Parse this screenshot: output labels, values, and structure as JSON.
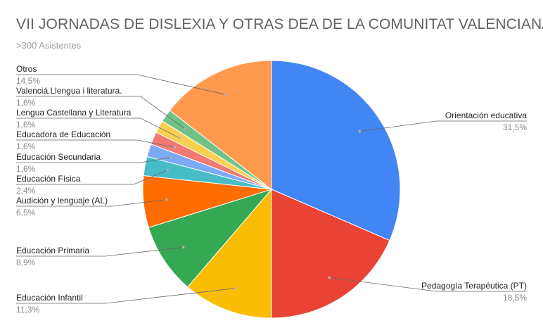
{
  "chart_data": {
    "type": "pie",
    "title": "VII JORNADAS DE DISLEXIA Y OTRAS DEA DE LA COMUNITAT VALENCIANA",
    "subtitle": ">300 Asistentes",
    "slices": [
      {
        "name": "Orientación educativa",
        "value": 31.5,
        "label": "31,5%",
        "color": "#4285f4"
      },
      {
        "name": "Pedagogía Terapéutica (PT)",
        "value": 18.5,
        "label": "18,5%",
        "color": "#ea4335"
      },
      {
        "name": "Educación Infantil",
        "value": 11.3,
        "label": "11,3%",
        "color": "#fbbc04"
      },
      {
        "name": "Educación Primaria",
        "value": 8.9,
        "label": "8,9%",
        "color": "#34a853"
      },
      {
        "name": "Audición y lenguaje (AL)",
        "value": 6.5,
        "label": "6,5%",
        "color": "#ff6d01"
      },
      {
        "name": "Educación Física",
        "value": 2.4,
        "label": "2,4%",
        "color": "#46bdc6"
      },
      {
        "name": "Educación Secundaria",
        "value": 1.6,
        "label": "1,6%",
        "color": "#7baaf7"
      },
      {
        "name": "Educadora de Educación",
        "value": 1.6,
        "label": "1,6%",
        "color": "#f07b72"
      },
      {
        "name": "Lengua Castellana y Literatura",
        "value": 1.6,
        "label": "1,6%",
        "color": "#fcd04f"
      },
      {
        "name": "Valenciá.Llengua i literatura.",
        "value": 1.6,
        "label": "1,6%",
        "color": "#71c287"
      },
      {
        "name": "Otros",
        "value": 14.5,
        "label": "14,5%",
        "color": "#ff994d"
      }
    ]
  }
}
